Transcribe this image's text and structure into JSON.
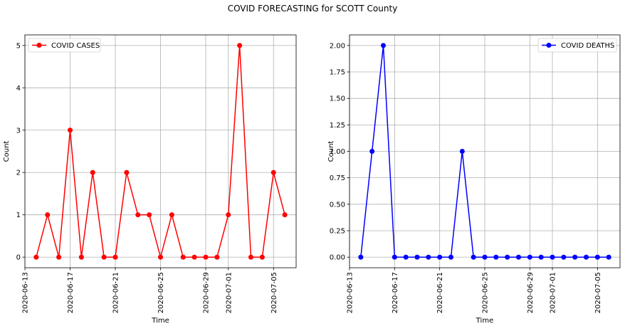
{
  "figure": {
    "title": "COVID FORECASTING for SCOTT County"
  },
  "chart_data": [
    {
      "type": "line",
      "xlabel": "Time",
      "ylabel": "Count",
      "x_ticks": [
        "2020-06-13",
        "2020-06-17",
        "2020-06-21",
        "2020-06-25",
        "2020-06-29",
        "2020-07-01",
        "2020-07-05"
      ],
      "x_range": [
        "2020-06-13",
        "2020-07-07"
      ],
      "y_ticks": [
        "0",
        "1",
        "2",
        "3",
        "4",
        "5"
      ],
      "ylim": [
        -0.25,
        5.25
      ],
      "grid": true,
      "legend_position": "upper left",
      "series": [
        {
          "name": "COVID CASES",
          "color": "#ff0000",
          "marker": "circle",
          "dates": [
            "2020-06-14",
            "2020-06-15",
            "2020-06-16",
            "2020-06-17",
            "2020-06-18",
            "2020-06-19",
            "2020-06-20",
            "2020-06-21",
            "2020-06-22",
            "2020-06-23",
            "2020-06-24",
            "2020-06-25",
            "2020-06-26",
            "2020-06-27",
            "2020-06-28",
            "2020-06-29",
            "2020-06-30",
            "2020-07-01",
            "2020-07-02",
            "2020-07-03",
            "2020-07-04",
            "2020-07-05",
            "2020-07-06"
          ],
          "values": [
            0,
            1,
            0,
            3,
            0,
            2,
            0,
            0,
            2,
            1,
            1,
            0,
            1,
            0,
            0,
            0,
            0,
            1,
            5,
            0,
            0,
            2,
            1
          ]
        }
      ]
    },
    {
      "type": "line",
      "xlabel": "Time",
      "ylabel": "Count",
      "x_ticks": [
        "2020-06-13",
        "2020-06-17",
        "2020-06-21",
        "2020-06-25",
        "2020-06-29",
        "2020-07-01",
        "2020-07-05"
      ],
      "x_range": [
        "2020-06-13",
        "2020-07-07"
      ],
      "y_ticks": [
        "0.00",
        "0.25",
        "0.50",
        "0.75",
        "1.00",
        "1.25",
        "1.50",
        "1.75",
        "2.00"
      ],
      "ylim": [
        -0.1,
        2.1
      ],
      "grid": true,
      "legend_position": "upper right",
      "series": [
        {
          "name": "COVID DEATHS",
          "color": "#0000ff",
          "marker": "circle",
          "dates": [
            "2020-06-14",
            "2020-06-15",
            "2020-06-16",
            "2020-06-17",
            "2020-06-18",
            "2020-06-19",
            "2020-06-20",
            "2020-06-21",
            "2020-06-22",
            "2020-06-23",
            "2020-06-24",
            "2020-06-25",
            "2020-06-26",
            "2020-06-27",
            "2020-06-28",
            "2020-06-29",
            "2020-06-30",
            "2020-07-01",
            "2020-07-02",
            "2020-07-03",
            "2020-07-04",
            "2020-07-05",
            "2020-07-06"
          ],
          "values": [
            0,
            1,
            2,
            0,
            0,
            0,
            0,
            0,
            0,
            1,
            0,
            0,
            0,
            0,
            0,
            0,
            0,
            0,
            0,
            0,
            0,
            0,
            0
          ]
        }
      ]
    }
  ]
}
